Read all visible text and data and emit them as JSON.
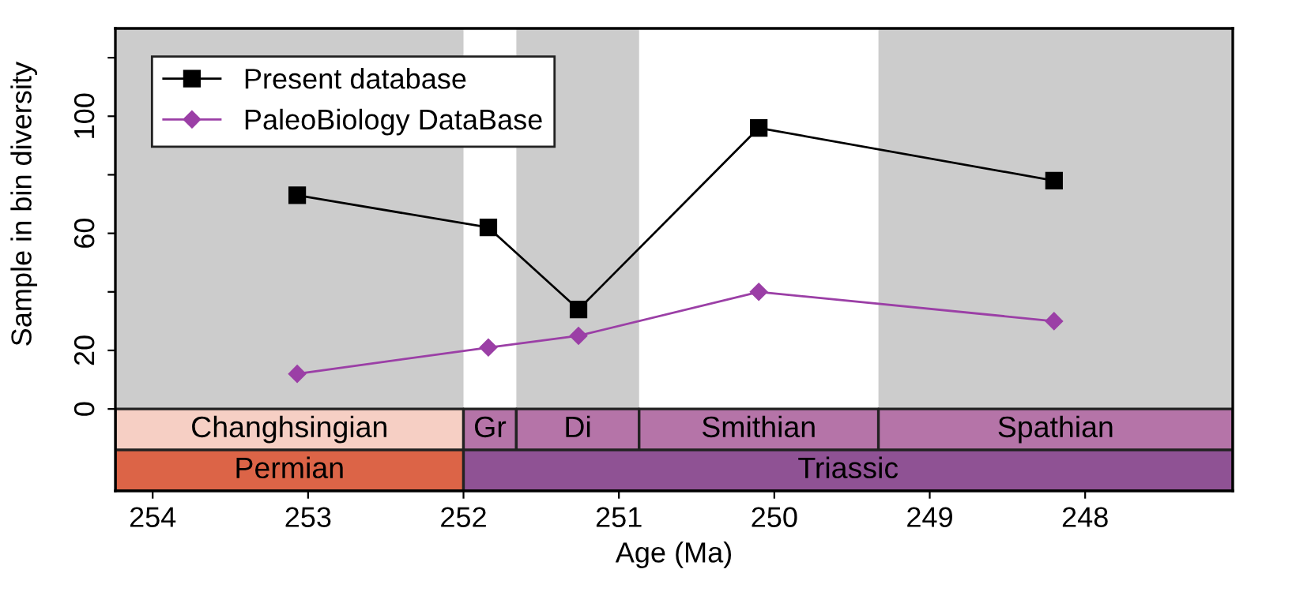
{
  "chart_data": {
    "type": "line",
    "xlabel": "Age (Ma)",
    "ylabel": "Sample in bin diversity",
    "xlim": [
      254.24,
      247.05
    ],
    "xticks": [
      254,
      253,
      252,
      251,
      250,
      249,
      248
    ],
    "ylim": [
      -28,
      130
    ],
    "yticks": [
      0,
      20,
      {
        "value": 40,
        "label": null
      },
      60,
      {
        "value": 80,
        "label": null
      },
      100,
      {
        "value": 120,
        "label": null
      }
    ],
    "grid": false,
    "legend": "top left",
    "series": [
      {
        "name": "Present database",
        "color": "#000000",
        "marker": "square",
        "x": [
          253.07,
          251.84,
          251.26,
          250.1,
          248.2
        ],
        "values": [
          73,
          62,
          34,
          96,
          78
        ]
      },
      {
        "name": "PaleoBiology DataBase",
        "color": "#9b3fa6",
        "marker": "diamond",
        "x": [
          253.07,
          251.84,
          251.26,
          250.1,
          248.2
        ],
        "values": [
          12,
          21,
          25,
          40,
          30
        ]
      }
    ],
    "bands": [
      {
        "axis": "x",
        "from": 254.24,
        "to": 252.0,
        "label": null,
        "color": "#cccccc"
      },
      {
        "axis": "x",
        "from": 251.66,
        "to": 250.87,
        "label": null,
        "color": "#cccccc"
      },
      {
        "axis": "x",
        "from": 249.33,
        "to": 247.05,
        "label": null,
        "color": "#cccccc"
      },
      {
        "axis": "x",
        "from": 254.24,
        "to": 252.0,
        "label": "Changhsingian",
        "color": "#f6cfc4"
      },
      {
        "axis": "x",
        "from": 252.0,
        "to": 251.66,
        "label": "Gr",
        "color": "#b574a8"
      },
      {
        "axis": "x",
        "from": 251.66,
        "to": 250.87,
        "label": "Di",
        "color": "#b574a8"
      },
      {
        "axis": "x",
        "from": 250.87,
        "to": 249.33,
        "label": "Smithian",
        "color": "#b574a8"
      },
      {
        "axis": "x",
        "from": 249.33,
        "to": 247.05,
        "label": "Spathian",
        "color": "#b574a8"
      },
      {
        "axis": "x",
        "from": 254.24,
        "to": 252.0,
        "label": "Permian",
        "color": "#dc6447"
      },
      {
        "axis": "x",
        "from": 252.0,
        "to": 247.05,
        "label": "Triassic",
        "color": "#8f5294"
      }
    ]
  }
}
